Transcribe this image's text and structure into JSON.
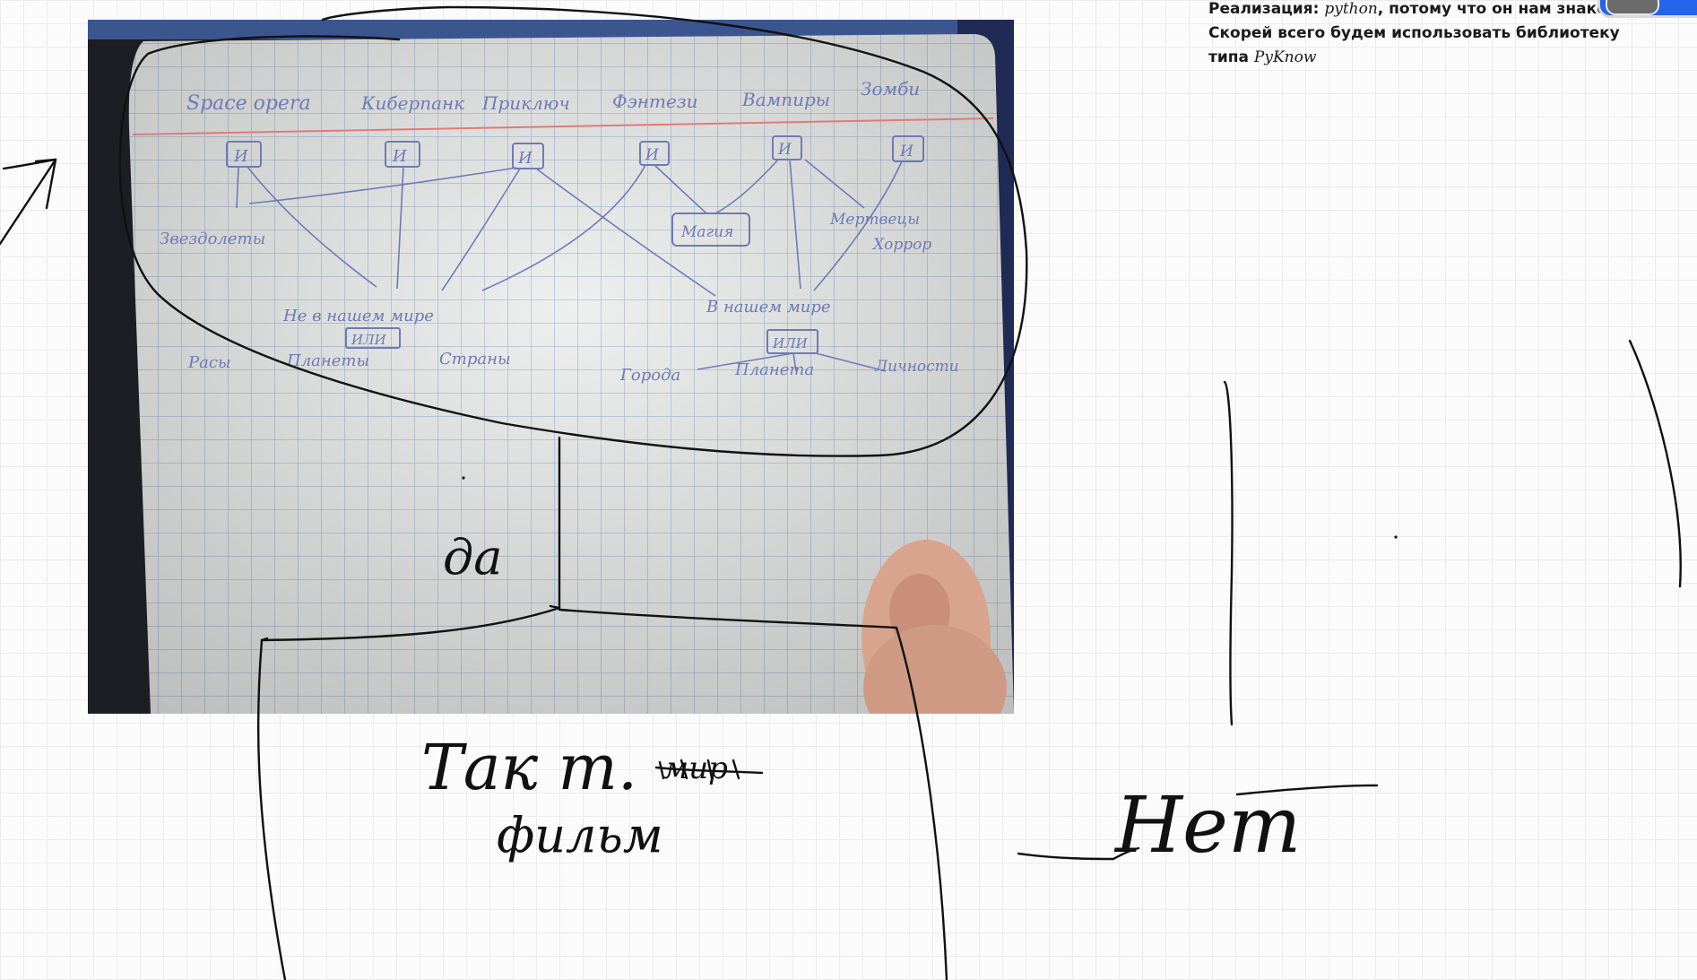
{
  "note": {
    "label": "Реализация:",
    "lang": "python",
    "text1": ", потому что он нам знаком. Скорей всего будем использовать библиотеку типа ",
    "lib": "PyKnow"
  },
  "diagram": {
    "genres": [
      "Space opera",
      "Киберпанк",
      "Приключ",
      "Фэнтези",
      "Вампиры",
      "Зомби"
    ],
    "and_label": "И",
    "or_label": "ИЛИ",
    "nodes": {
      "stars": "Звездолеты",
      "magic": "Магия",
      "undead": "Мертвецы",
      "horror": "Хоррор",
      "not_our_world": "Не в нашем мире",
      "our_world": "В нашем мире",
      "races": "Расы",
      "planets": "Планеты",
      "countries": "Страны",
      "cities": "Города",
      "planets2": "Планета",
      "lichnosti": "Личности"
    },
    "annotations": {
      "yes": "да",
      "answer_line1": "Так т.",
      "struck": "мир",
      "answer_line2": "фильм",
      "no": "Нет"
    }
  }
}
